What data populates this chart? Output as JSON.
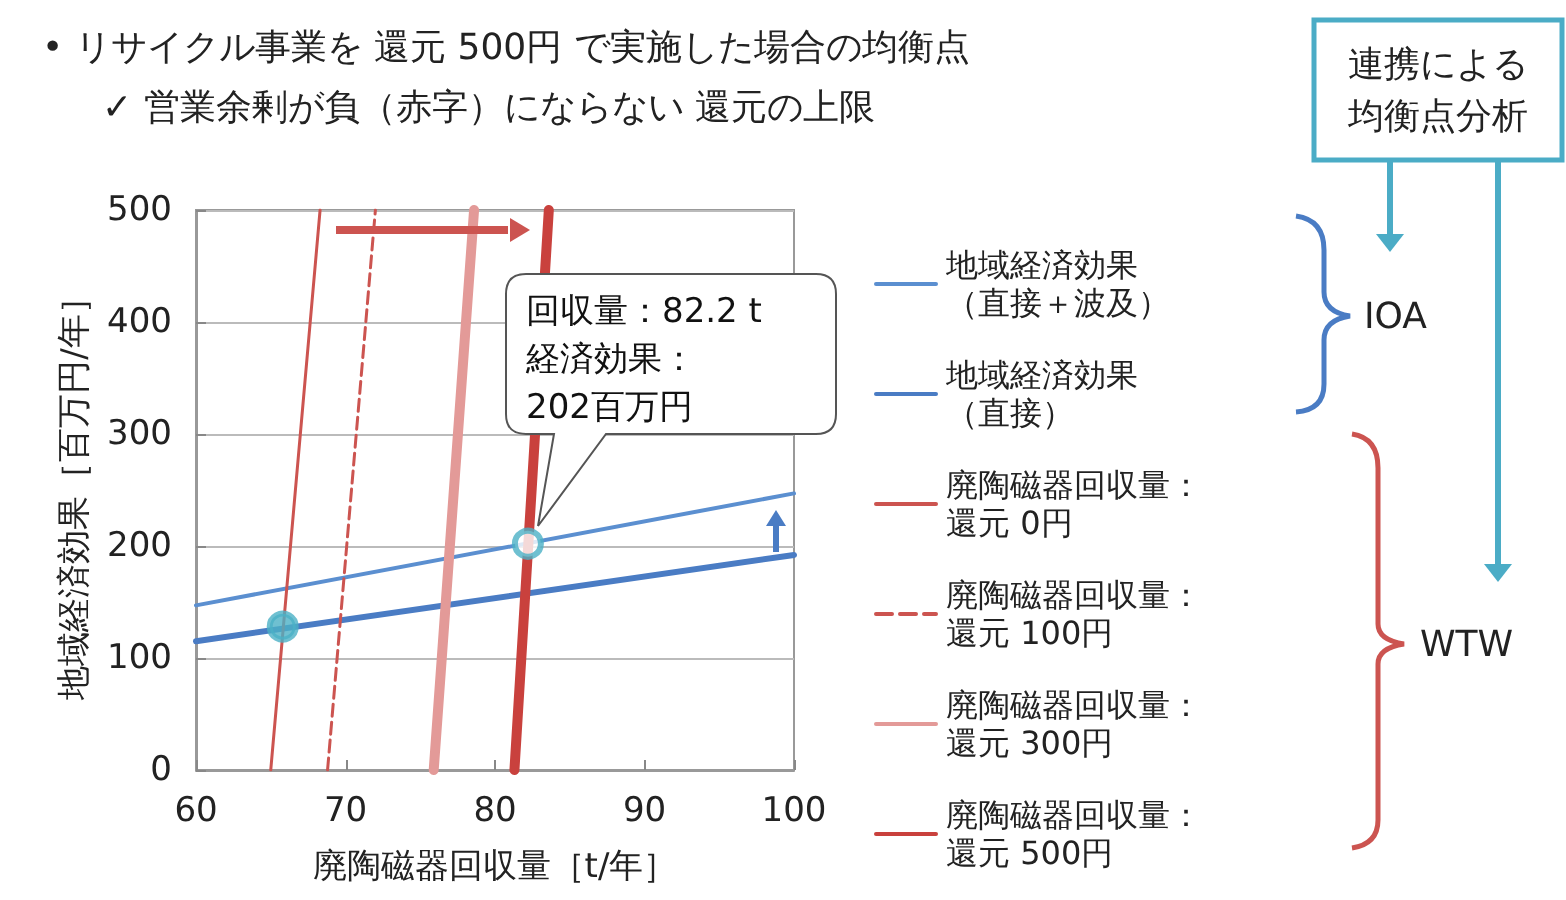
{
  "chart_data": {
    "type": "line",
    "title": "• リサイクル事業を 還元 500円 で実施した場合の均衡点",
    "subtitle": "✓ 営業余剰が負（赤字）にならない 還元の上限",
    "xlabel": "廃陶磁器回収量［t/年］",
    "ylabel": "地域経済効果［百万円/年］",
    "xlim": [
      60,
      100
    ],
    "xticks": [
      60,
      70,
      80,
      90,
      100
    ],
    "ylim": [
      0,
      500
    ],
    "yticks": [
      0,
      100,
      200,
      300,
      400,
      500
    ],
    "grid": "y",
    "legend": "right",
    "marker": "none",
    "series": [
      {
        "name": "地域経済効果（直接＋波及）",
        "color": "#5b8fd0",
        "x": [
          60,
          100
        ],
        "values": [
          147,
          247
        ]
      },
      {
        "name": "地域経済効果（直接）",
        "color": "#4a7cc4",
        "x": [
          60,
          100
        ],
        "values": [
          115,
          192
        ]
      },
      {
        "name": "廃陶磁器回収量：還元 0円",
        "color": "#cc5450",
        "x": [
          65.0,
          68.3
        ],
        "values": [
          0,
          500
        ]
      },
      {
        "name": "廃陶磁器回収量：還元 100円",
        "color": "#cc5450",
        "line_style": "dashed",
        "x": [
          68.8,
          72.0
        ],
        "values": [
          0,
          500
        ]
      },
      {
        "name": "廃陶磁器回収量：還元 300円",
        "color": "#e39a98",
        "x": [
          75.9,
          78.6
        ],
        "values": [
          0,
          500
        ]
      },
      {
        "name": "廃陶磁器回収量：還元 500円",
        "color": "#c9413d",
        "x": [
          81.3,
          83.6
        ],
        "values": [
          0,
          500
        ]
      },
      {
        "type": "scatter",
        "marker": "circle",
        "colors": [
          "#4bb0c5",
          "#ffffff"
        ],
        "x": [
          65.8,
          82.2
        ],
        "values": [
          128,
          202
        ]
      }
    ],
    "annotations": [
      "回収量：82.2 t\n経済効果：\n202百万円",
      "連携による均衡点分析",
      "IOA",
      "WTW"
    ]
  }
}
